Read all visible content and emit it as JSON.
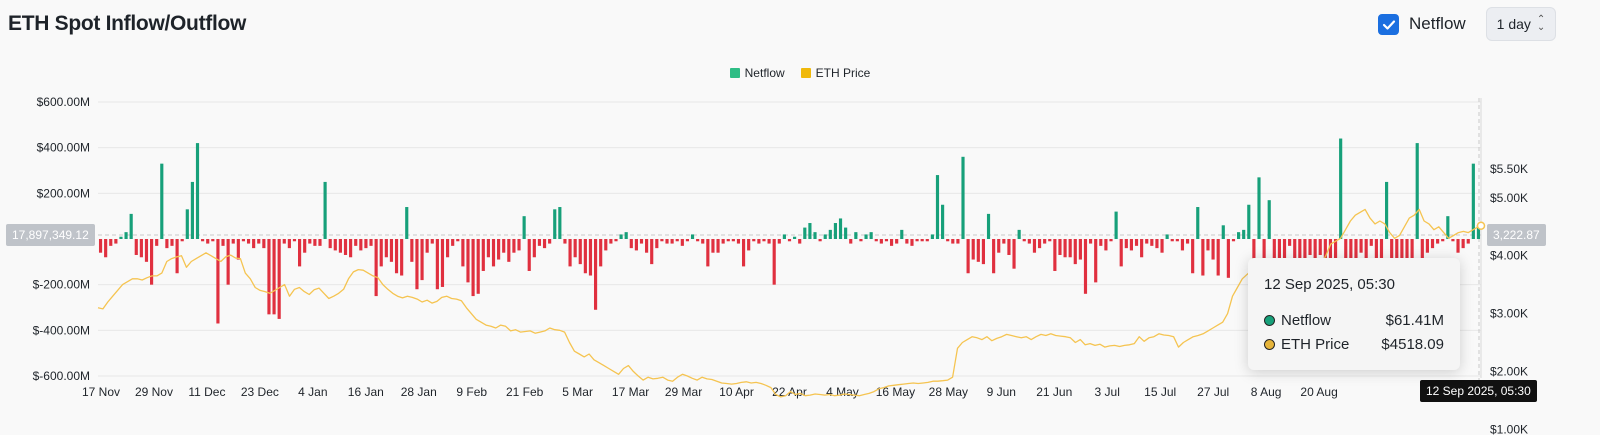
{
  "header": {
    "title": "ETH Spot Inflow/Outflow",
    "netflow_checkbox_label": "Netflow",
    "netflow_checked": true,
    "range_label": "1 day"
  },
  "legend": [
    {
      "label": "Netflow",
      "color": "#2ebd85"
    },
    {
      "label": "ETH Price",
      "color": "#f0b90b"
    }
  ],
  "crosshair": {
    "left_value": "17,897,349.12",
    "right_value": "3,222.87",
    "date": "12 Sep 2025, 05:30"
  },
  "tooltip": {
    "title": "12 Sep 2025, 05:30",
    "rows": [
      {
        "label": "Netflow",
        "value": "$61.41M",
        "dot_color": "#17a07a"
      },
      {
        "label": "ETH Price",
        "value": "$4518.09",
        "dot_color": "#e6b43a"
      }
    ]
  },
  "colors": {
    "positive": "#17a07a",
    "negative": "#e0303f",
    "price": "#f5c451"
  },
  "chart_data": {
    "type": "bar",
    "y_left": {
      "ticks": [
        "$600.00M",
        "$400.00M",
        "$200.00M",
        "$-200.00M",
        "$-400.00M",
        "$-600.00M"
      ],
      "values": [
        600,
        400,
        200,
        -200,
        -400,
        -600
      ],
      "ylim": [
        -600,
        600
      ],
      "unit": "M USD"
    },
    "y_right": {
      "ticks": [
        "$5.50K",
        "$5.00K",
        "$4.00K",
        "$3.00K",
        "$2.00K",
        "$1.00K"
      ],
      "values": [
        5500,
        5000,
        4000,
        3000,
        2000,
        1000
      ],
      "ylim": [
        550,
        5800
      ],
      "unit": "USD"
    },
    "x_ticks": [
      "17 Nov",
      "29 Nov",
      "11 Dec",
      "23 Dec",
      "4 Jan",
      "16 Jan",
      "28 Jan",
      "9 Feb",
      "21 Feb",
      "5 Mar",
      "17 Mar",
      "29 Mar",
      "10 Apr",
      "22 Apr",
      "4 May",
      "16 May",
      "28 May",
      "9 Jun",
      "21 Jun",
      "3 Jul",
      "15 Jul",
      "27 Jul",
      "8 Aug",
      "20 Aug"
    ],
    "netflow_millions": [
      -60,
      -80,
      -30,
      -20,
      10,
      30,
      110,
      -70,
      -80,
      -100,
      -200,
      -30,
      330,
      -40,
      -30,
      -150,
      -10,
      130,
      250,
      420,
      -10,
      -20,
      -10,
      -370,
      -30,
      -200,
      -20,
      -90,
      -10,
      -20,
      -40,
      -20,
      -40,
      -330,
      -330,
      -350,
      -20,
      -40,
      -10,
      -120,
      -60,
      -20,
      -30,
      -30,
      250,
      -40,
      -50,
      -60,
      -70,
      -80,
      -30,
      -50,
      -40,
      -30,
      -250,
      -120,
      -80,
      -100,
      -150,
      -160,
      140,
      -100,
      -220,
      -180,
      -60,
      -20,
      -220,
      -210,
      -80,
      -30,
      -10,
      -120,
      -190,
      -250,
      -240,
      -140,
      -80,
      -120,
      -90,
      -60,
      -100,
      -60,
      -50,
      100,
      -140,
      -80,
      -30,
      -40,
      -20,
      130,
      140,
      -20,
      -120,
      -80,
      -110,
      -150,
      -160,
      -310,
      -120,
      -50,
      -20,
      -10,
      20,
      30,
      -40,
      -50,
      -20,
      -60,
      -110,
      -40,
      -10,
      -20,
      -20,
      -10,
      -30,
      -10,
      20,
      -10,
      -20,
      -120,
      -60,
      -60,
      -20,
      -10,
      -10,
      -20,
      -120,
      -50,
      -10,
      -20,
      -10,
      -20,
      -200,
      -20,
      20,
      -10,
      10,
      -20,
      50,
      70,
      30,
      -10,
      20,
      40,
      70,
      90,
      50,
      -20,
      30,
      -10,
      20,
      30,
      -10,
      -20,
      -10,
      -30,
      -20,
      40,
      -20,
      -30,
      -10,
      -10,
      -10,
      20,
      280,
      150,
      -10,
      -20,
      -20,
      360,
      -150,
      -90,
      -100,
      -110,
      110,
      -150,
      -60,
      -20,
      -70,
      -130,
      40,
      -10,
      -20,
      -60,
      -40,
      -20,
      -10,
      -140,
      -70,
      -80,
      -80,
      -110,
      -90,
      -240,
      -20,
      -190,
      -30,
      -50,
      -10,
      120,
      -120,
      -40,
      -50,
      -30,
      -80,
      -20,
      -30,
      -40,
      -60,
      20,
      -10,
      -10,
      -50,
      -20,
      -150,
      140,
      -160,
      -50,
      -90,
      -160,
      60,
      -170,
      -10,
      30,
      40,
      150,
      -190,
      270,
      -100,
      170,
      -380,
      -280,
      -130,
      -30,
      -250,
      -90,
      -250,
      -70,
      -120,
      -70,
      -260,
      -150,
      -90,
      440,
      -100,
      -220,
      -120,
      -60,
      -300,
      -30,
      -120,
      -190,
      250,
      -140,
      -100,
      -160,
      -170,
      -90,
      420,
      -200,
      -60,
      -40,
      -20,
      -10,
      100,
      -10,
      -60,
      -40,
      -20,
      330,
      61
    ],
    "eth_price_usd": [
      3100,
      3080,
      3200,
      3300,
      3400,
      3500,
      3550,
      3600,
      3600,
      3580,
      3620,
      3650,
      3650,
      3700,
      3900,
      3950,
      3980,
      4000,
      3800,
      3900,
      3950,
      4000,
      4050,
      4000,
      3950,
      3900,
      3980,
      4010,
      3960,
      3950,
      3700,
      3600,
      3450,
      3400,
      3380,
      3350,
      3400,
      3450,
      3500,
      3300,
      3420,
      3450,
      3380,
      3330,
      3410,
      3440,
      3350,
      3260,
      3300,
      3350,
      3420,
      3600,
      3720,
      3760,
      3750,
      3700,
      3650,
      3620,
      3500,
      3420,
      3350,
      3300,
      3270,
      3300,
      3280,
      3250,
      3200,
      3230,
      3180,
      3210,
      3280,
      3300,
      3260,
      3250,
      3220,
      3100,
      3000,
      2900,
      2850,
      2800,
      2780,
      2750,
      2800,
      2780,
      2700,
      2720,
      2680,
      2690,
      2700,
      2660,
      2680,
      2700,
      2750,
      2720,
      2710,
      2680,
      2500,
      2350,
      2300,
      2250,
      2300,
      2200,
      2150,
      2100,
      2050,
      2000,
      1950,
      2050,
      2100,
      2000,
      1920,
      1850,
      1900,
      1870,
      1880,
      1900,
      1850,
      1830,
      1900,
      1950,
      1920,
      1880,
      1850,
      1900,
      1870,
      1860,
      1830,
      1800,
      1790,
      1780,
      1790,
      1810,
      1820,
      1800,
      1810,
      1790,
      1760,
      1720,
      1600,
      1560,
      1580,
      1650,
      1600,
      1620,
      1580,
      1590,
      1610,
      1600,
      1590,
      1600,
      1580,
      1590,
      1610,
      1600,
      1590,
      1580,
      1600,
      1620,
      1650,
      1700,
      1720,
      1750,
      1760,
      1770,
      1780,
      1790,
      1800,
      1790,
      1800,
      1810,
      1830,
      1830,
      1840,
      1850,
      1900,
      2400,
      2500,
      2550,
      2600,
      2580,
      2550,
      2600,
      2530,
      2570,
      2600,
      2640,
      2620,
      2600,
      2580,
      2600,
      2550,
      2600,
      2640,
      2620,
      2650,
      2620,
      2610,
      2600,
      2580,
      2500,
      2550,
      2460,
      2480,
      2450,
      2470,
      2420,
      2440,
      2450,
      2430,
      2450,
      2460,
      2480,
      2600,
      2520,
      2580,
      2600,
      2650,
      2630,
      2620,
      2600,
      2420,
      2500,
      2550,
      2600,
      2620,
      2650,
      2700,
      2750,
      2800,
      2850,
      3000,
      3300,
      3450,
      3600,
      3680,
      3750,
      3780,
      3850,
      3700,
      3650,
      3800,
      3820,
      3700,
      3650,
      3760,
      3900,
      3650,
      3700,
      3800,
      3850,
      4000,
      4200,
      4250,
      4300,
      4450,
      4600,
      4700,
      4750,
      4800,
      4650,
      4550,
      4600,
      4550,
      4400,
      4300,
      4350,
      4500,
      4650,
      4700,
      4800,
      4600,
      4550,
      4450,
      4500,
      4400,
      4300,
      4350,
      4400,
      4420,
      4400,
      4450,
      4500,
      4518
    ]
  }
}
